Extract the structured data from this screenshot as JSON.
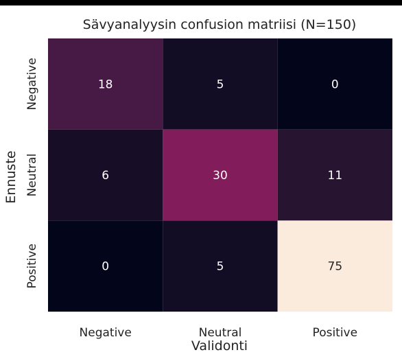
{
  "chart_data": {
    "type": "heatmap",
    "title": "Sävyanalyysin confusion matriisi (N=150)",
    "xlabel": "Validonti",
    "ylabel": "Ennuste",
    "x_categories": [
      "Negative",
      "Neutral",
      "Positive"
    ],
    "y_categories": [
      "Negative",
      "Neutral",
      "Positive"
    ],
    "values": [
      [
        18,
        5,
        0
      ],
      [
        6,
        30,
        11
      ],
      [
        0,
        5,
        75
      ]
    ],
    "colorbar": false,
    "colormap": "rocket",
    "value_range": [
      0,
      75
    ]
  }
}
